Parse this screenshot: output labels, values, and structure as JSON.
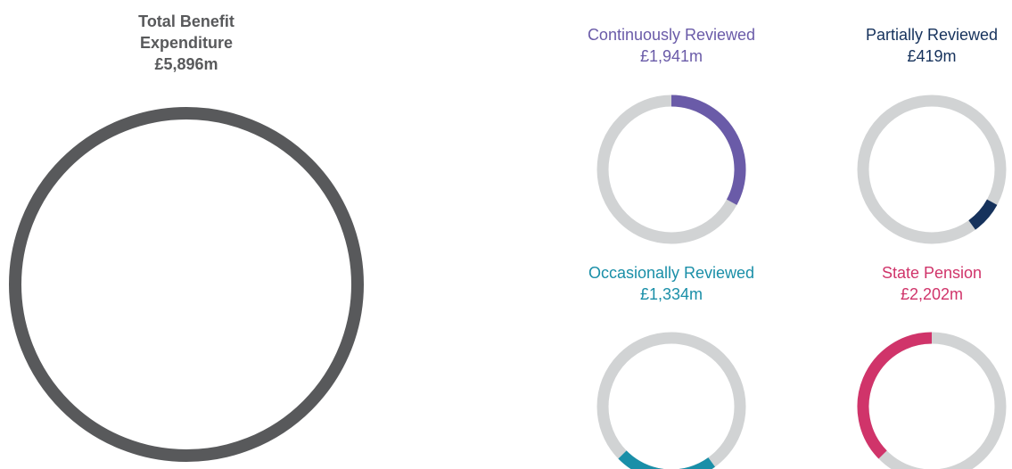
{
  "chart_data": {
    "type": "donut",
    "title": "Total Benefit Expenditure",
    "total": 5896,
    "total_label": "£5,896m",
    "total_color": "#58595b",
    "track_color": "#d1d3d4",
    "categories": [
      "Continuously Reviewed",
      "Partially Reviewed",
      "Occasionally Reviewed",
      "State Pension"
    ],
    "values": [
      1941,
      419,
      1334,
      2202
    ],
    "value_labels": [
      "£1,941m",
      "£419m",
      "£1,334m",
      "£2,202m"
    ],
    "colors": [
      "#6a5ba8",
      "#16325c",
      "#1a8fa8",
      "#d0346a"
    ]
  }
}
